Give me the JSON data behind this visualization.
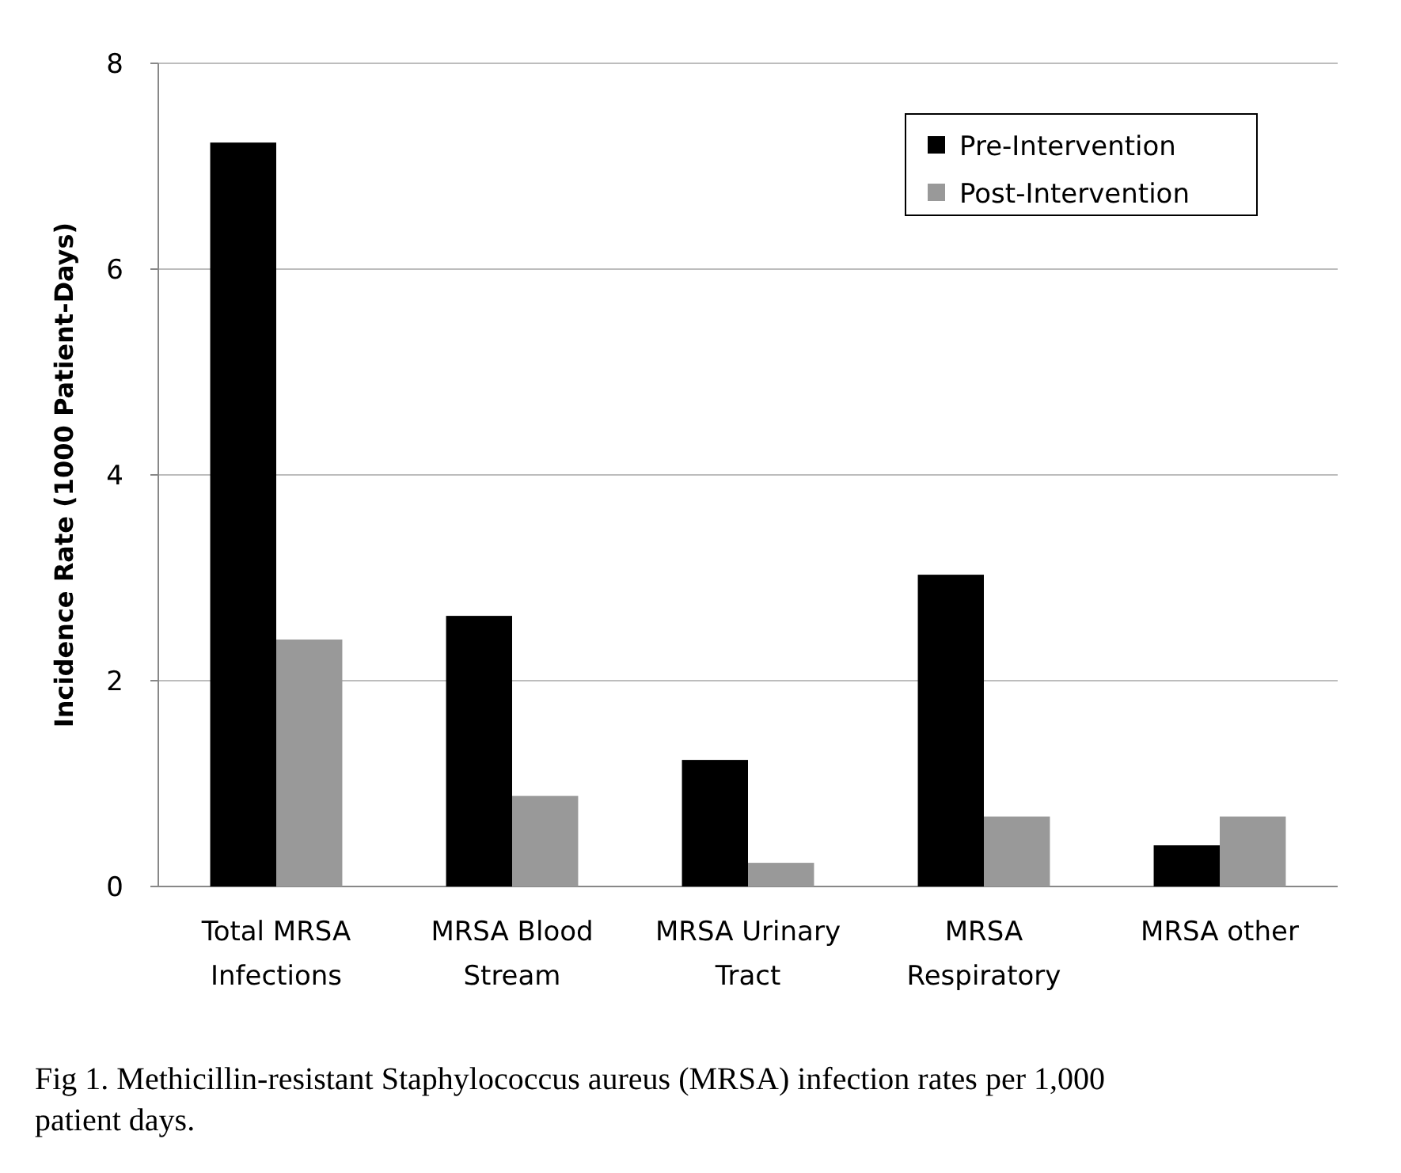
{
  "chart_data": {
    "type": "bar",
    "ylabel": "Incidence Rate (1000 Patient-Days)",
    "categories": [
      "Total MRSA Infections",
      "MRSA Blood Stream",
      "MRSA Urinary Tract",
      "MRSA Respiratory",
      "MRSA other"
    ],
    "series": [
      {
        "name": "Pre-Intervention",
        "color": "#000000",
        "values": [
          7.23,
          2.63,
          1.23,
          3.03,
          0.4
        ]
      },
      {
        "name": "Post-Intervention",
        "color": "#999999",
        "values": [
          2.4,
          0.88,
          0.23,
          0.68,
          0.68
        ]
      }
    ],
    "ylim": [
      0,
      8
    ],
    "yticks": [
      0,
      2,
      4,
      6,
      8
    ],
    "grid": "y",
    "legend": "top right",
    "annotations": [
      "Fig 1.  Methicillin-resistant Staphylococcus aureus (MRSA) infection rates per 1,000 patient days."
    ]
  }
}
